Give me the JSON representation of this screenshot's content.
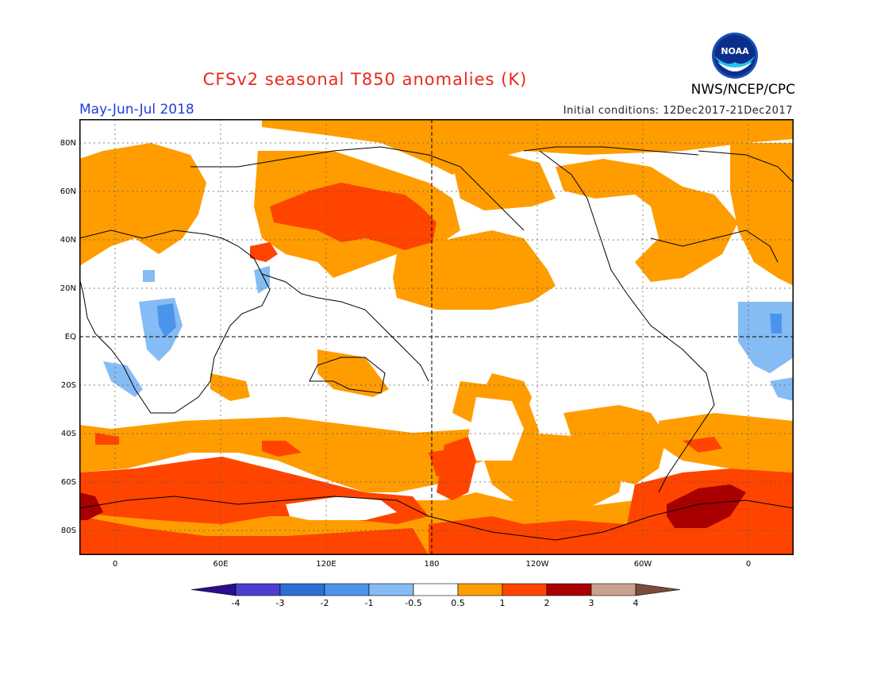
{
  "header": {
    "title": "CFSv2 seasonal T850 anomalies (K)",
    "period": "May-Jun-Jul 2018",
    "initial_conditions": "Initial conditions: 12Dec2017-21Dec2017",
    "agency": "NWS/NCEP/CPC",
    "logo_text": "NOAA"
  },
  "axes": {
    "lat_labels": [
      "80N",
      "60N",
      "40N",
      "20N",
      "EQ",
      "20S",
      "40S",
      "60S",
      "80S"
    ],
    "lon_labels": [
      "0",
      "60E",
      "120E",
      "180",
      "120W",
      "60W",
      "0"
    ]
  },
  "colorbar": {
    "tick_labels": [
      "-4",
      "-3",
      "-2",
      "-1",
      "-0.5",
      "0.5",
      "1",
      "2",
      "3",
      "4"
    ],
    "colors": [
      "#2a0d8c",
      "#4b3fd0",
      "#2e6fd6",
      "#4b94ec",
      "#85bcf3",
      "#ffffff",
      "#ff9d00",
      "#ff4400",
      "#a80000",
      "#c9a08e",
      "#7a4a3a"
    ]
  },
  "colors": {
    "warm_light": "#ff9d00",
    "warm_mid": "#ff4400",
    "warm_dark": "#a80000",
    "cool_light": "#85bcf3",
    "cool_mid": "#4b94ec"
  }
}
